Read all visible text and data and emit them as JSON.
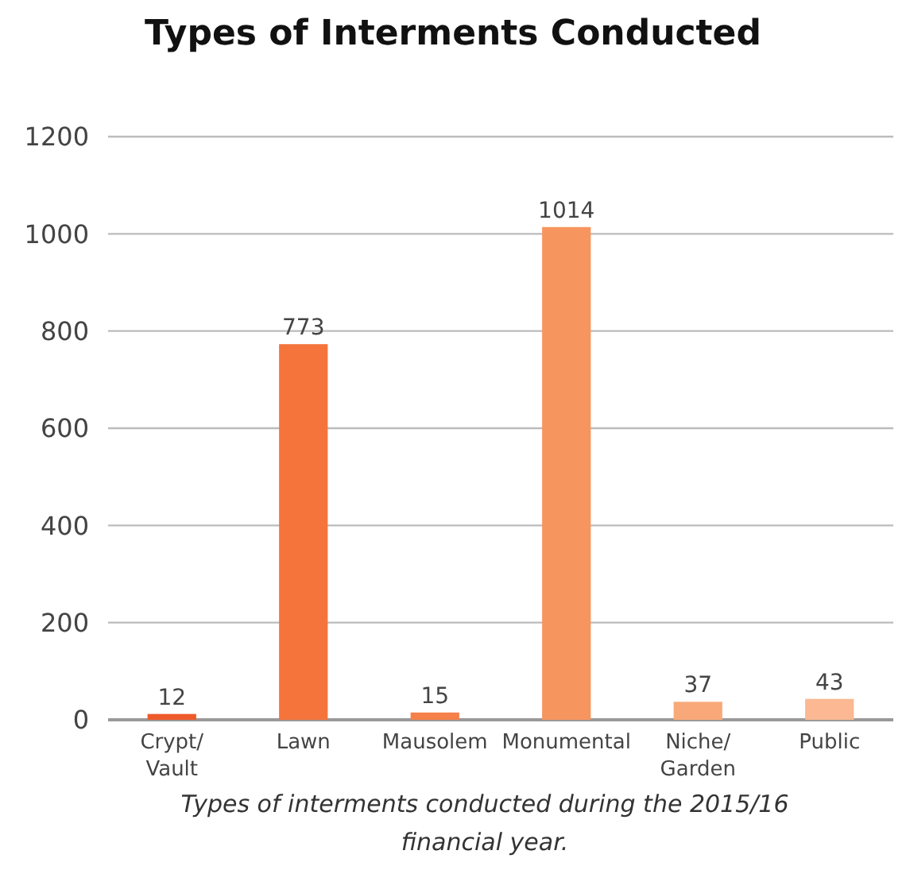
{
  "chart_data": {
    "type": "bar",
    "title": "Types of Interments Conducted",
    "categories": [
      "Crypt/Vault",
      "Lawn",
      "Mausolem",
      "Monumental",
      "Niche/Garden",
      "Public"
    ],
    "values": [
      12,
      773,
      15,
      1014,
      37,
      43
    ],
    "colors": [
      "#ee5a2a",
      "#f4743b",
      "#f5804a",
      "#f7955f",
      "#f9a979",
      "#fbb892"
    ],
    "ylim": [
      0,
      1200
    ],
    "yticks": [
      0,
      200,
      400,
      600,
      800,
      1000,
      1200
    ],
    "grid": "y",
    "data_labels": true,
    "annotations": [
      "Types of interments conducted during the 2015/16 financial year."
    ]
  }
}
